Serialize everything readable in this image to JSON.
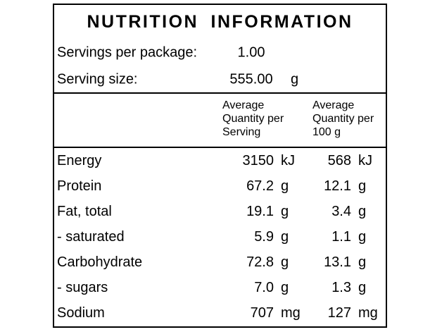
{
  "title": "NUTRITION INFORMATION",
  "servings_per_package": {
    "label": "Servings per package:",
    "value": "1.00"
  },
  "serving_size": {
    "label": "Serving size:",
    "value": "555.00",
    "unit": "g"
  },
  "columns": {
    "per_serving": [
      "Average",
      "Quantity per",
      "Serving"
    ],
    "per_100g": [
      "Average",
      "Quantity per",
      "100 g"
    ]
  },
  "rows": [
    {
      "name": "Energy",
      "per_serving": "3150",
      "per_serving_unit": "kJ",
      "per_100g": "568",
      "per_100g_unit": "kJ"
    },
    {
      "name": "Protein",
      "per_serving": "67.2",
      "per_serving_unit": "g",
      "per_100g": "12.1",
      "per_100g_unit": "g"
    },
    {
      "name": "Fat, total",
      "per_serving": "19.1",
      "per_serving_unit": "g",
      "per_100g": "3.4",
      "per_100g_unit": "g"
    },
    {
      "name": "- saturated",
      "per_serving": "5.9",
      "per_serving_unit": "g",
      "per_100g": "1.1",
      "per_100g_unit": "g"
    },
    {
      "name": "Carbohydrate",
      "per_serving": "72.8",
      "per_serving_unit": "g",
      "per_100g": "13.1",
      "per_100g_unit": "g"
    },
    {
      "name": "- sugars",
      "per_serving": "7.0",
      "per_serving_unit": "g",
      "per_100g": "1.3",
      "per_100g_unit": "g"
    },
    {
      "name": "Sodium",
      "per_serving": "707",
      "per_serving_unit": "mg",
      "per_100g": "127",
      "per_100g_unit": "mg"
    }
  ],
  "colors": {
    "text": "#000000",
    "border": "#000000",
    "background": "#ffffff"
  }
}
